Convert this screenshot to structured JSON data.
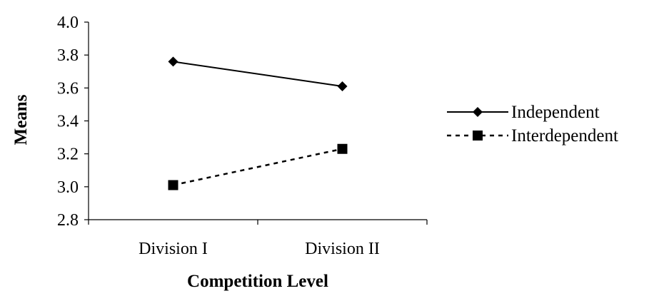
{
  "chart_data": {
    "type": "line",
    "categories": [
      "Division I",
      "Division II"
    ],
    "series": [
      {
        "name": "Independent",
        "values": [
          3.76,
          3.61
        ],
        "marker": "diamond",
        "line": "solid",
        "color": "#000000"
      },
      {
        "name": "Interdependent",
        "values": [
          3.01,
          3.23
        ],
        "marker": "square",
        "line": "dotted",
        "color": "#000000"
      }
    ],
    "xlabel": "Competition Level",
    "ylabel": "Means",
    "ylim": [
      2.8,
      4.0
    ],
    "yticks": [
      "4.0",
      "3.8",
      "3.6",
      "3.4",
      "3.2",
      "3.0",
      "2.8"
    ],
    "grid": false,
    "legend_position": "right"
  }
}
